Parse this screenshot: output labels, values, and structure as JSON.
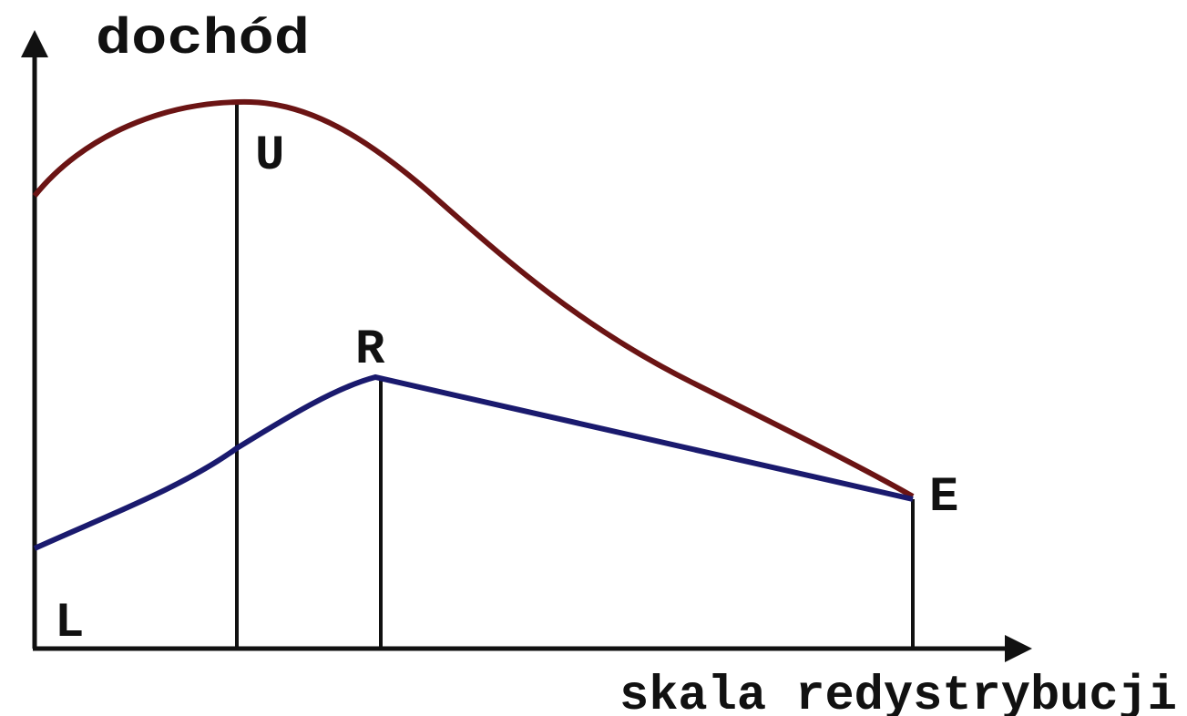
{
  "axes": {
    "y_label": "dochód",
    "x_label": "skala redystrybucji"
  },
  "points": {
    "upper_peak": "U",
    "lower_peak": "R",
    "end": "E",
    "origin": "L"
  }
}
